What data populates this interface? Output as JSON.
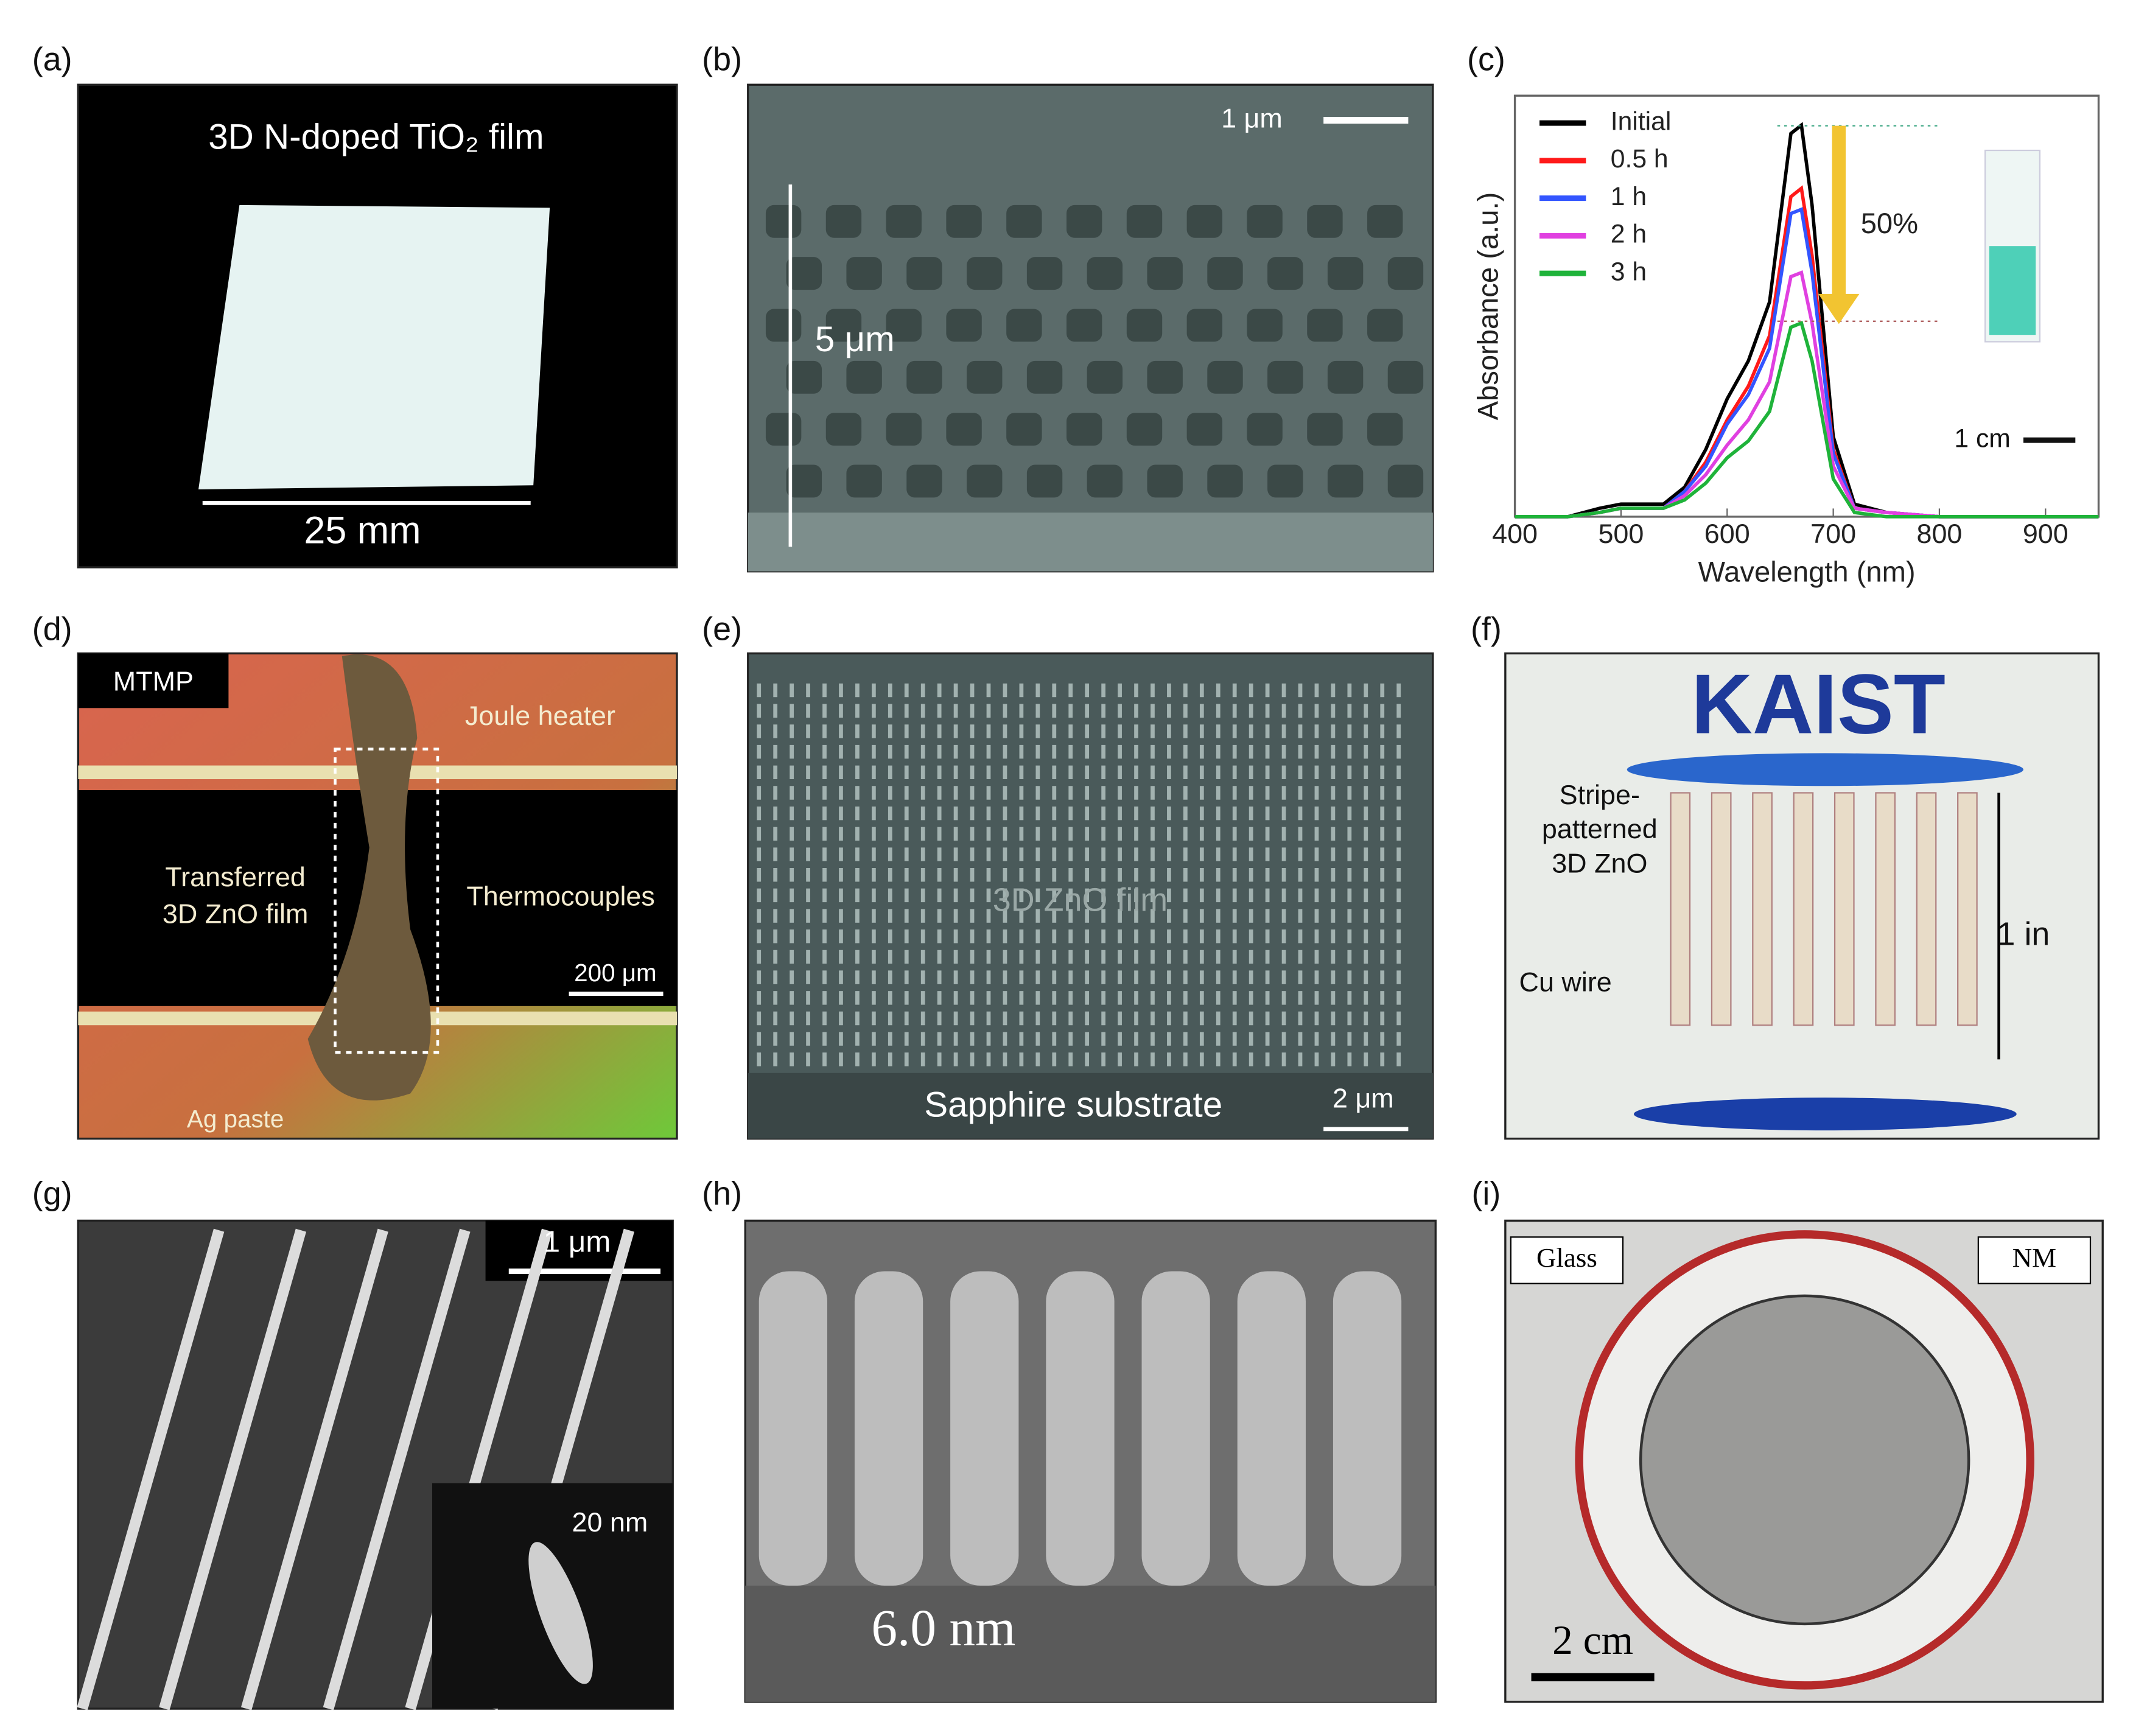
{
  "panels": [
    {
      "label": "(a)",
      "texts": [
        "3D N-doped TiO₂ film",
        "25 mm"
      ]
    },
    {
      "label": "(b)",
      "texts": [
        "1 μm",
        "5 μm"
      ]
    },
    {
      "label": "(c)",
      "texts": []
    },
    {
      "label": "(d)",
      "texts": [
        "MTMP",
        "Joule heater",
        "Transferred",
        "3D ZnO film",
        "Thermocouples",
        "200 μm",
        "Ag paste"
      ]
    },
    {
      "label": "(e)",
      "texts": [
        "3D ZnO film",
        "Sapphire substrate",
        "2 μm"
      ]
    },
    {
      "label": "(f)",
      "texts": [
        "KAIST",
        "Stripe-",
        "patterned",
        "3D ZnO",
        "Cu wire",
        "1 in"
      ]
    },
    {
      "label": "(g)",
      "texts": [
        "1 μm",
        "20 nm"
      ]
    },
    {
      "label": "(h)",
      "texts": [
        "6.0 nm"
      ]
    },
    {
      "label": "(i)",
      "texts": [
        "Glass",
        "NM",
        "2 cm"
      ]
    }
  ],
  "chart_data": {
    "type": "line",
    "xlabel": "Wavelength (nm)",
    "ylabel": "Absorbance (a.u.)",
    "x": [
      400,
      450,
      480,
      500,
      540,
      560,
      580,
      600,
      620,
      640,
      660,
      670,
      680,
      700,
      720,
      750,
      800,
      900,
      950
    ],
    "xlim": [
      400,
      950
    ],
    "xticks": [
      400,
      500,
      600,
      700,
      800,
      900
    ],
    "ylim": [
      0,
      1
    ],
    "series": [
      {
        "name": "Initial",
        "color": "#000000",
        "values": [
          0,
          0,
          0.02,
          0.03,
          0.03,
          0.07,
          0.16,
          0.28,
          0.37,
          0.51,
          0.91,
          0.93,
          0.74,
          0.19,
          0.03,
          0.01,
          0,
          0,
          0
        ]
      },
      {
        "name": "0.5 h",
        "color": "#ff1a1a",
        "values": [
          0,
          0,
          0.01,
          0.02,
          0.02,
          0.06,
          0.13,
          0.23,
          0.31,
          0.43,
          0.76,
          0.78,
          0.62,
          0.16,
          0.02,
          0.01,
          0,
          0,
          0
        ]
      },
      {
        "name": "1 h",
        "color": "#3355ff",
        "values": [
          0,
          0,
          0.01,
          0.02,
          0.02,
          0.06,
          0.12,
          0.22,
          0.29,
          0.4,
          0.72,
          0.73,
          0.58,
          0.15,
          0.02,
          0.01,
          0,
          0,
          0
        ]
      },
      {
        "name": "2 h",
        "color": "#e040e0",
        "values": [
          0,
          0,
          0.01,
          0.02,
          0.02,
          0.05,
          0.1,
          0.17,
          0.23,
          0.32,
          0.57,
          0.58,
          0.46,
          0.12,
          0.02,
          0.01,
          0,
          0,
          0
        ]
      },
      {
        "name": "3 h",
        "color": "#1fb33a",
        "values": [
          0,
          0,
          0.01,
          0.02,
          0.02,
          0.04,
          0.08,
          0.14,
          0.18,
          0.25,
          0.45,
          0.46,
          0.37,
          0.09,
          0.01,
          0,
          0,
          0,
          0
        ]
      }
    ],
    "annotations": [
      "50%",
      "1 cm"
    ]
  }
}
